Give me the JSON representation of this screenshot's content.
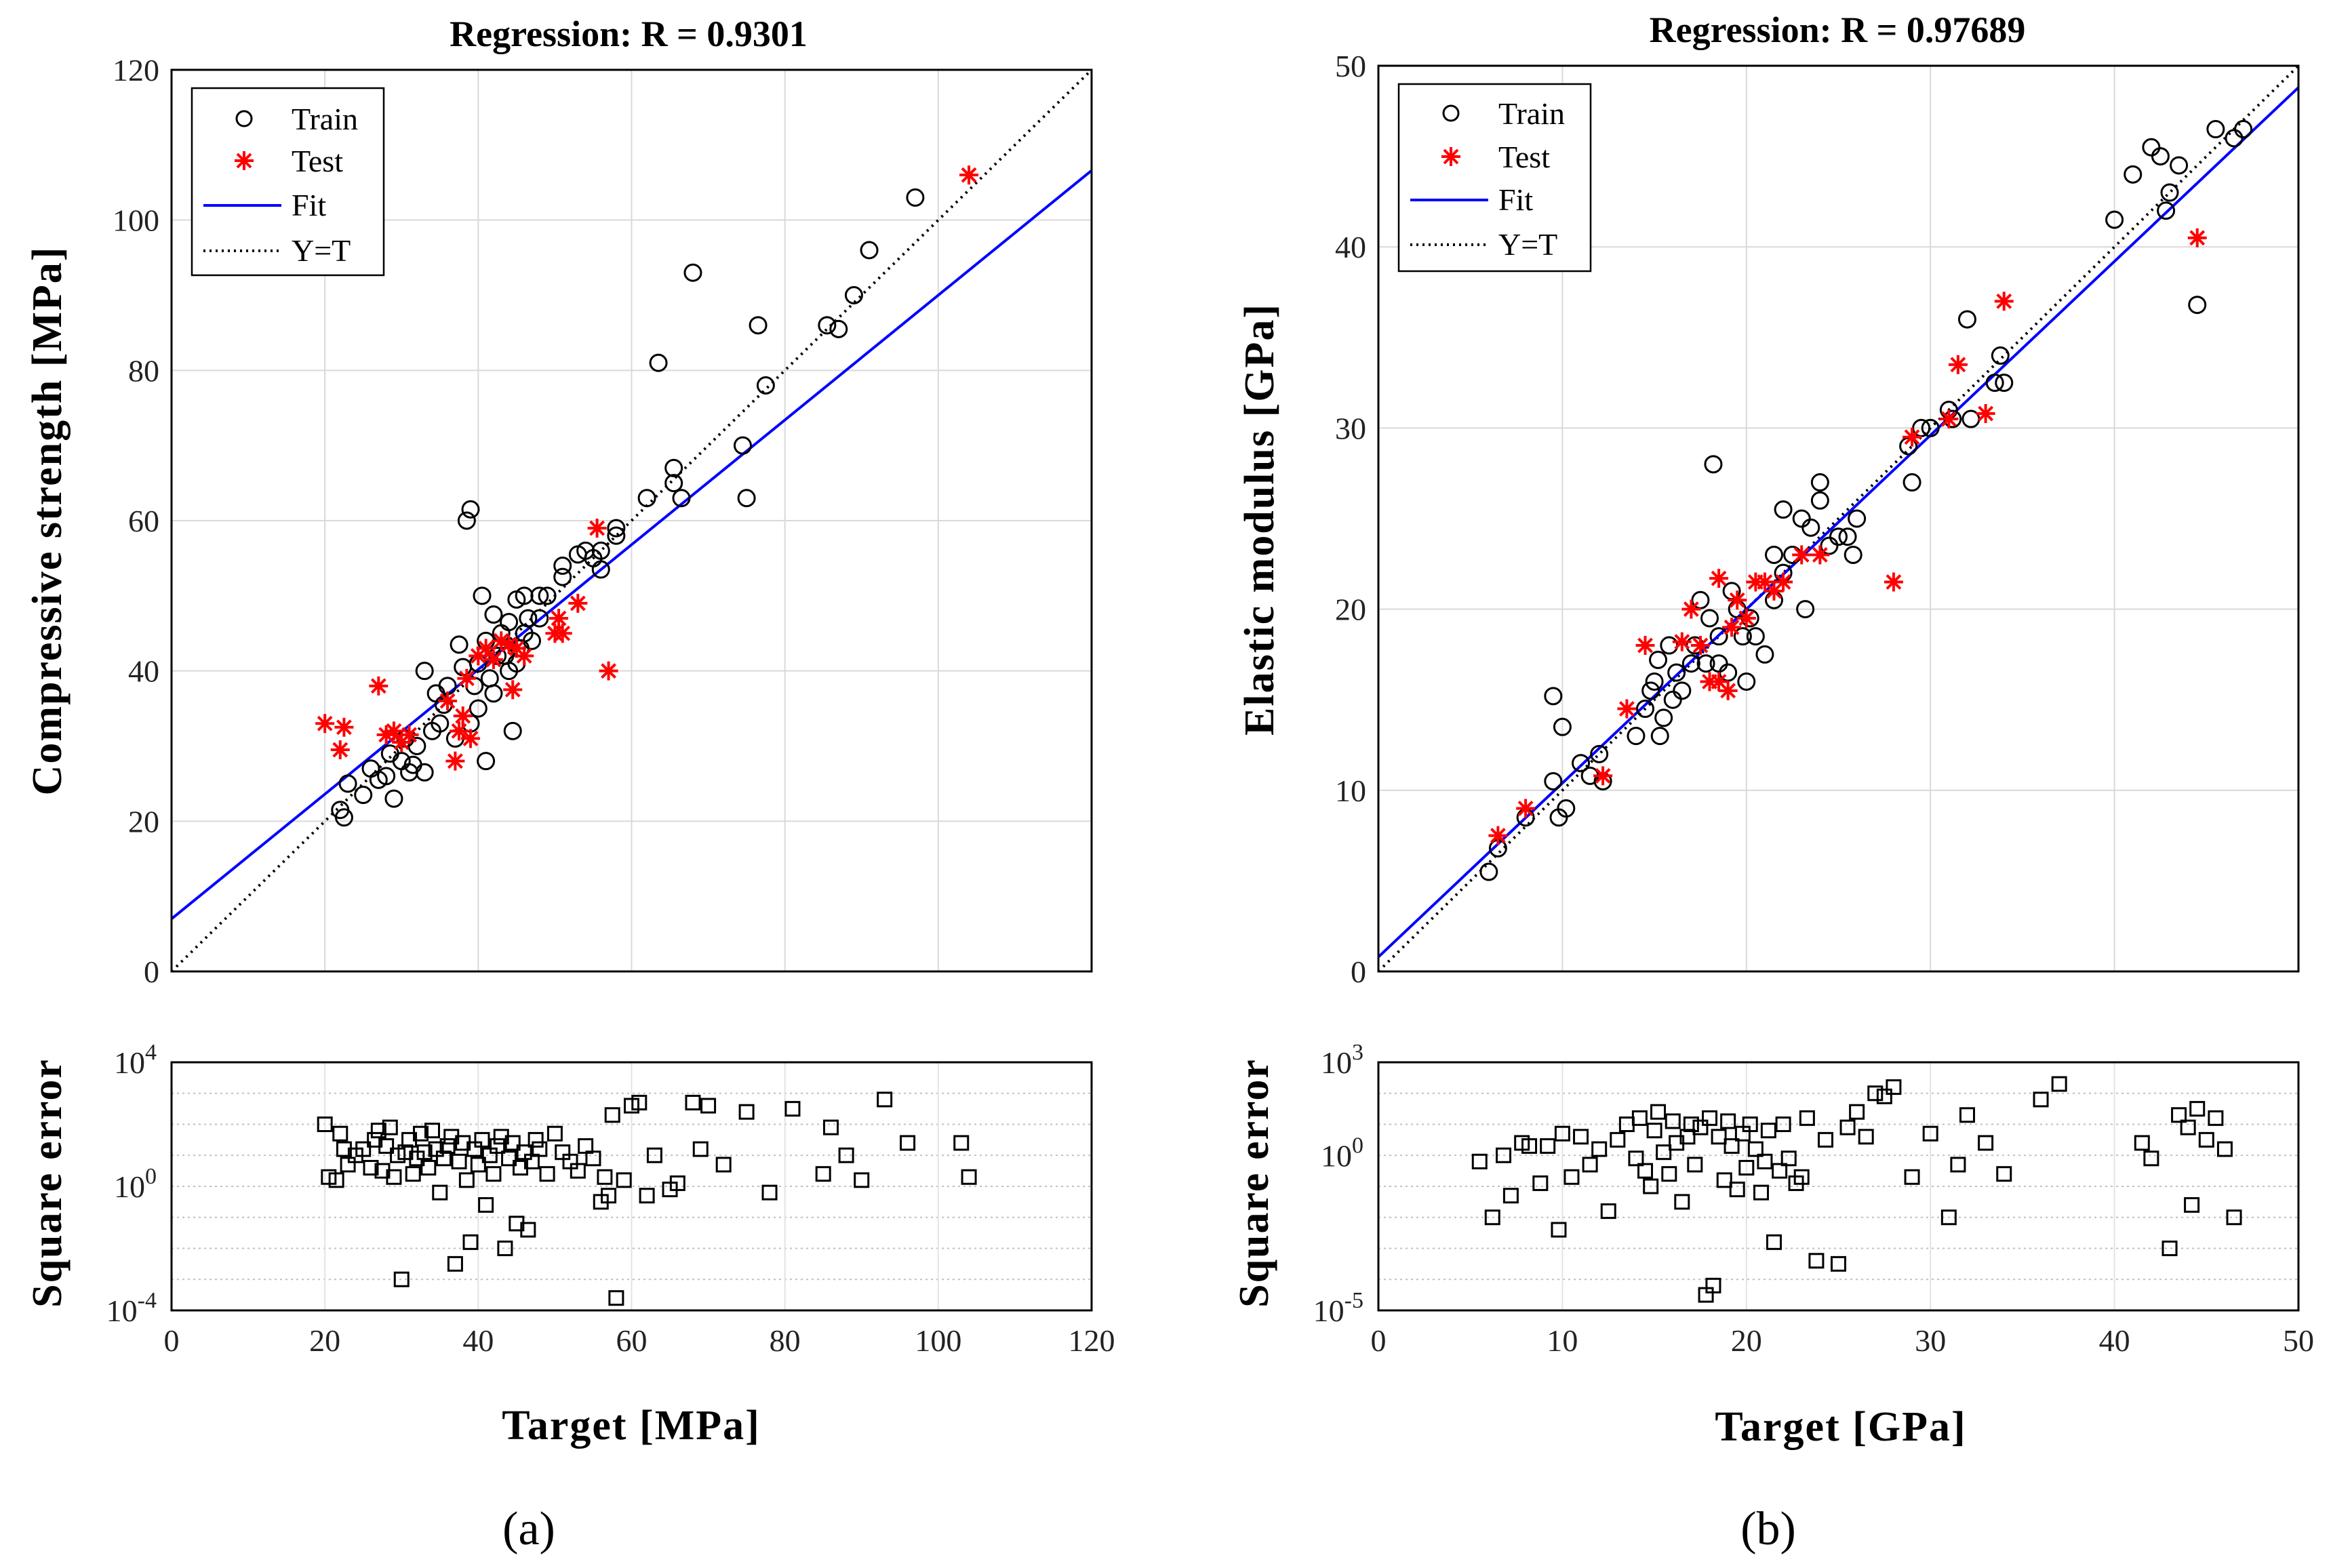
{
  "chart_data": [
    {
      "type": "scatter",
      "panel_label": "(a)",
      "title": "Regression: R = 0.9301",
      "ylabel": "Compressive strength [MPa]",
      "xlabel": "Target [MPa]",
      "xlim": [
        0,
        120
      ],
      "ylim": [
        0,
        120
      ],
      "xticks": [
        "0",
        "20",
        "40",
        "60",
        "80",
        "100",
        "120"
      ],
      "yticks": [
        "0",
        "20",
        "40",
        "60",
        "80",
        "100",
        "120"
      ],
      "grid": true,
      "legend": {
        "position": "top-left",
        "entries": [
          "Train",
          "Test",
          "Fit",
          "Y=T"
        ]
      },
      "fit": {
        "slope": 0.83,
        "intercept": 7
      },
      "series": [
        {
          "name": "Train",
          "marker": "circle",
          "color": "#000000",
          "x": [
            22,
            22.5,
            23,
            25,
            26,
            27,
            28,
            28.5,
            29,
            30,
            30.5,
            31,
            31.5,
            32,
            33,
            33,
            34,
            34.5,
            35,
            35.5,
            36,
            37,
            37.5,
            38,
            38.5,
            39,
            39,
            39.5,
            40,
            40,
            40.5,
            41,
            41,
            41.5,
            42,
            42,
            42.5,
            43,
            43.5,
            44,
            44,
            44.5,
            45,
            45,
            45.5,
            46,
            46,
            46.5,
            47,
            48,
            48,
            49,
            51,
            51,
            53,
            54,
            55,
            56,
            56,
            58,
            58,
            62,
            63.5,
            65.5,
            65.5,
            66.5,
            68,
            74.5,
            75,
            76.5,
            77.5,
            85.5,
            87,
            89,
            91,
            97
          ],
          "y": [
            21.5,
            20.5,
            25,
            23.5,
            27,
            25.5,
            26,
            29,
            23,
            28,
            31,
            26.5,
            27.5,
            30,
            40,
            26.5,
            32,
            37,
            33,
            35.5,
            38,
            31,
            43.5,
            40.5,
            60,
            61.5,
            33,
            38,
            35,
            41,
            50,
            28,
            44,
            39,
            37,
            47.5,
            42,
            45,
            42,
            40,
            46.5,
            32,
            41,
            49.5,
            43,
            45,
            50,
            47,
            44,
            47,
            50,
            50,
            52.5,
            54,
            55.5,
            56,
            55,
            56,
            53.5,
            58,
            59,
            63,
            81,
            67,
            65,
            63,
            93,
            70,
            63,
            86,
            78,
            86,
            85.5,
            90,
            96,
            103
          ]
        },
        {
          "name": "Test",
          "marker": "star",
          "color": "#ff0000",
          "x": [
            20,
            22,
            22.5,
            27,
            28,
            29,
            30,
            31,
            36,
            37,
            37.5,
            38,
            38.5,
            39,
            40,
            41,
            42,
            43,
            44,
            44.5,
            45,
            46,
            50,
            50.5,
            51,
            53,
            55.5,
            57,
            104
          ],
          "y": [
            33,
            29.5,
            32.5,
            38,
            31.5,
            32,
            30.5,
            31.5,
            36,
            28,
            32,
            34,
            39,
            31,
            42,
            43,
            41.5,
            44,
            43.5,
            37.5,
            43,
            42,
            45,
            47,
            45,
            49,
            59,
            40,
            106
          ]
        }
      ],
      "error_subplot": {
        "ylabel": "Square error",
        "yscale": "log",
        "yticks": [
          "10^-4",
          "10^0",
          "10^4"
        ],
        "ylim_exp": [
          -4,
          4
        ],
        "x": [
          20,
          20.5,
          21.5,
          22,
          22.5,
          23,
          24,
          25,
          26,
          26.5,
          27,
          27.5,
          28,
          28.5,
          29,
          29.5,
          30,
          30.5,
          31,
          31.5,
          32,
          32.5,
          33,
          33.5,
          34,
          34.5,
          35,
          35.5,
          36,
          36.5,
          37,
          37.5,
          38,
          38.5,
          39,
          39.5,
          40,
          40.5,
          41,
          41.5,
          42,
          42.5,
          43,
          43.5,
          44,
          44.5,
          45,
          45.5,
          46,
          46.5,
          47,
          47.5,
          48,
          49,
          50,
          51,
          52,
          53,
          54,
          55,
          56,
          56.5,
          57,
          57.5,
          58,
          59,
          60,
          61,
          62,
          63,
          65,
          66,
          68,
          69,
          70,
          72,
          75,
          78,
          81,
          85,
          86,
          88,
          90,
          93,
          96,
          103,
          104
        ],
        "y_exp": [
          2.0,
          0.3,
          0.2,
          1.7,
          1.2,
          0.7,
          1.0,
          1.2,
          0.6,
          1.5,
          1.8,
          0.5,
          1.3,
          1.9,
          0.3,
          1.0,
          -3.0,
          1.1,
          1.5,
          0.4,
          0.9,
          1.7,
          1.1,
          0.6,
          1.8,
          1.2,
          -0.2,
          0.9,
          1.3,
          1.6,
          -2.5,
          0.8,
          1.4,
          0.2,
          -1.8,
          1.2,
          0.7,
          1.5,
          -0.6,
          1.0,
          0.4,
          1.3,
          1.6,
          -2.0,
          0.9,
          1.4,
          -1.2,
          0.6,
          1.1,
          -1.4,
          0.8,
          1.5,
          1.2,
          0.4,
          1.7,
          1.1,
          0.8,
          0.5,
          1.3,
          0.9,
          -0.5,
          0.3,
          -0.3,
          2.3,
          -3.6,
          0.2,
          2.6,
          2.7,
          -0.3,
          1.0,
          -0.1,
          0.1,
          2.7,
          1.2,
          2.6,
          0.7,
          2.4,
          -0.2,
          2.5,
          0.4,
          1.9,
          1.0,
          0.2,
          2.8,
          1.4,
          1.4,
          0.3
        ]
      }
    },
    {
      "type": "scatter",
      "panel_label": "(b)",
      "title": "Regression: R = 0.97689",
      "ylabel": "Elastic modulus [GPa]",
      "xlabel": "Target [GPa]",
      "xlim": [
        0,
        50
      ],
      "ylim": [
        0,
        50
      ],
      "xticks": [
        "0",
        "10",
        "20",
        "30",
        "40",
        "50"
      ],
      "yticks": [
        "0",
        "10",
        "20",
        "30",
        "40",
        "50"
      ],
      "grid": true,
      "legend": {
        "position": "top-left",
        "entries": [
          "Train",
          "Test",
          "Fit",
          "Y=T"
        ]
      },
      "fit": {
        "slope": 0.96,
        "intercept": 0.8
      },
      "series": [
        {
          "name": "Train",
          "marker": "circle",
          "color": "#000000",
          "x": [
            6,
            6.5,
            8,
            9.5,
            9.5,
            9.8,
            10,
            10.2,
            11,
            11.5,
            12,
            12.2,
            14,
            14.5,
            14.8,
            15,
            15.2,
            15.3,
            15.5,
            15.8,
            16,
            16.2,
            16.5,
            17,
            17.2,
            17.5,
            17.8,
            18,
            18.2,
            18.5,
            18.5,
            19,
            19.2,
            19.5,
            19.8,
            20,
            20.2,
            20.5,
            21,
            21.5,
            21.5,
            22,
            22,
            22.5,
            23,
            23.2,
            23.5,
            24,
            24,
            24.5,
            25,
            25.5,
            25.8,
            26,
            28.8,
            29,
            29.5,
            30,
            31,
            31.2,
            32,
            32.2,
            33.5,
            33.8,
            34,
            40,
            41,
            42,
            42.5,
            42.8,
            43,
            43.5,
            44.5,
            45.5,
            46.5,
            47
          ],
          "y": [
            5.5,
            6.8,
            8.5,
            15.2,
            10.5,
            8.5,
            13.5,
            9,
            11.5,
            10.8,
            12,
            10.5,
            13,
            14.5,
            15.5,
            16,
            17.2,
            13,
            14,
            18,
            15,
            16.5,
            15.5,
            17,
            18,
            20.5,
            17,
            19.5,
            28,
            17,
            18.5,
            16.5,
            21,
            20,
            18.5,
            16,
            19.5,
            18.5,
            17.5,
            20.5,
            23,
            22,
            25.5,
            23,
            25,
            20,
            24.5,
            26,
            27,
            23.5,
            24,
            24,
            23,
            25,
            29,
            27,
            30,
            30,
            31,
            30.5,
            36,
            30.5,
            32.5,
            34,
            32.5,
            41.5,
            44,
            45.5,
            45,
            42,
            43,
            44.5,
            36.8,
            46.5,
            46,
            46.5
          ]
        },
        {
          "name": "Test",
          "marker": "star",
          "color": "#ff0000",
          "x": [
            6.5,
            8,
            12.2,
            13.5,
            14.5,
            16.5,
            17,
            17.5,
            18,
            18.5,
            18.5,
            19,
            19.2,
            19.5,
            20,
            20.5,
            21,
            21.5,
            22,
            23,
            24,
            28,
            29,
            31,
            31.5,
            33,
            34,
            44.5
          ],
          "y": [
            7.5,
            9,
            10.8,
            14.5,
            18,
            18.2,
            20,
            18,
            16,
            16,
            21.7,
            15.5,
            19,
            20.5,
            19.5,
            21.5,
            21.5,
            21,
            21.5,
            23,
            23,
            21.5,
            29.5,
            30.5,
            33.5,
            30.8,
            37,
            40.5
          ]
        }
      ],
      "error_subplot": {
        "ylabel": "Square error",
        "yscale": "log",
        "yticks": [
          "10^-5",
          "10^0",
          "10^3"
        ],
        "ylim_exp": [
          -5,
          3
        ],
        "x": [
          5.5,
          6.2,
          6.8,
          7.2,
          7.8,
          8.2,
          8.8,
          9.2,
          9.8,
          10,
          10.5,
          11,
          11.5,
          12,
          12.5,
          13,
          13.5,
          14,
          14.2,
          14.5,
          14.8,
          15,
          15.2,
          15.5,
          15.8,
          16,
          16.2,
          16.5,
          16.8,
          17,
          17.2,
          17.5,
          17.8,
          18,
          18.2,
          18.5,
          18.8,
          19,
          19.2,
          19.5,
          19.8,
          20,
          20.2,
          20.5,
          20.8,
          21,
          21.2,
          21.5,
          21.8,
          22,
          22.3,
          22.7,
          23,
          23.3,
          23.8,
          24.3,
          25,
          25.5,
          26,
          26.5,
          27,
          27.5,
          28,
          29,
          30,
          31,
          31.5,
          32,
          33,
          34,
          36,
          37,
          41.5,
          42,
          43,
          43.5,
          44,
          44.2,
          44.5,
          45,
          45.5,
          46,
          46.5
        ],
        "y_exp": [
          -0.2,
          -2.0,
          0.0,
          -1.3,
          0.4,
          0.3,
          -0.9,
          0.3,
          -2.4,
          0.7,
          -0.7,
          0.6,
          -0.3,
          0.2,
          -1.8,
          0.5,
          1.0,
          -0.1,
          1.2,
          -0.5,
          -1.0,
          0.8,
          1.4,
          0.1,
          -0.6,
          1.1,
          0.4,
          -1.5,
          0.6,
          1.0,
          -0.3,
          0.9,
          -4.5,
          1.2,
          -4.2,
          0.6,
          -0.8,
          1.1,
          0.3,
          -1.1,
          0.7,
          -0.4,
          1.0,
          0.2,
          -1.2,
          -0.2,
          0.8,
          -2.8,
          -0.5,
          1.0,
          -0.1,
          -0.9,
          -0.7,
          1.2,
          -3.4,
          0.5,
          -3.5,
          0.9,
          1.4,
          0.6,
          2.0,
          1.9,
          2.2,
          -0.7,
          0.7,
          -2.0,
          -0.3,
          1.3,
          0.4,
          -0.6,
          1.8,
          2.3,
          0.4,
          -0.1,
          -3.0,
          1.3,
          0.9,
          -1.6,
          1.5,
          0.5,
          1.2,
          0.2,
          -2.0
        ]
      }
    }
  ]
}
